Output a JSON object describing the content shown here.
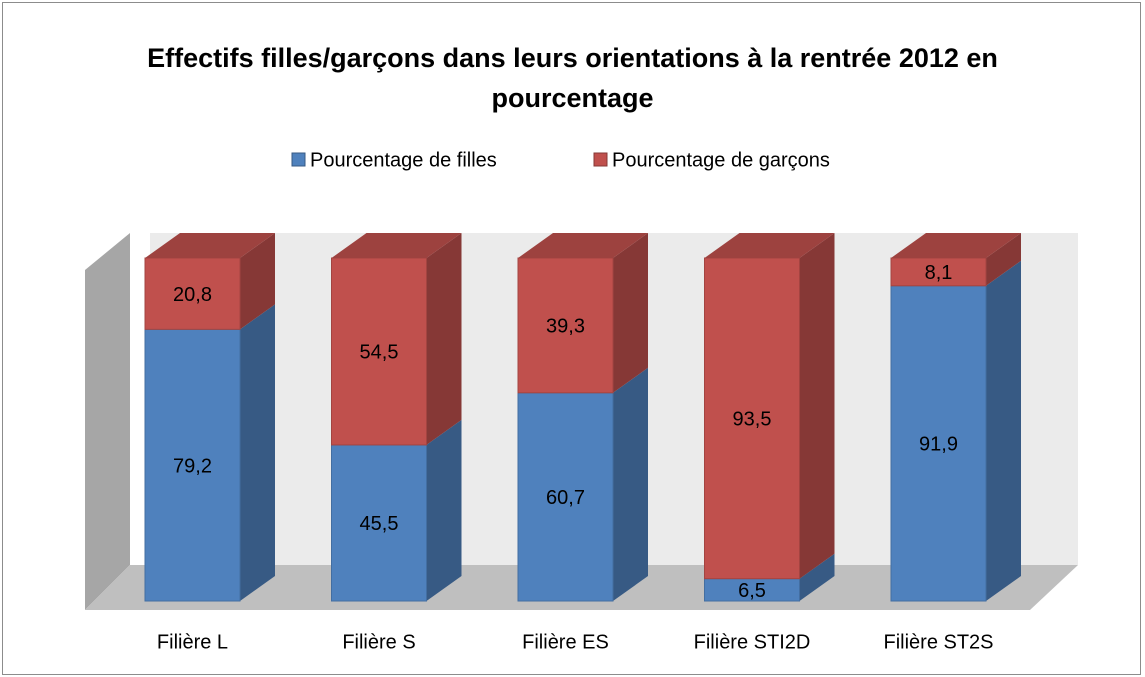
{
  "chart_data": {
    "type": "bar3d_stacked",
    "title": "Effectifs filles/garçons dans leurs orientations à la rentrée 2012 en pourcentage",
    "categories": [
      "Filière L",
      "Filière S",
      "Filière ES",
      "Filière STI2D",
      "Filière ST2S"
    ],
    "series": [
      {
        "name": "Pourcentage de filles",
        "color": "#4f81bd",
        "values": [
          79.2,
          45.5,
          60.7,
          6.5,
          91.9
        ],
        "value_labels": [
          "79,2",
          "45,5",
          "60,7",
          "6,5",
          "91,9"
        ]
      },
      {
        "name": "Pourcentage de garçons",
        "color": "#c0504d",
        "values": [
          20.8,
          54.5,
          39.3,
          93.5,
          8.1
        ],
        "value_labels": [
          "20,8",
          "54,5",
          "39,3",
          "93,5",
          "8,1"
        ]
      }
    ],
    "ylim": [
      0,
      100
    ],
    "legend": "top"
  }
}
